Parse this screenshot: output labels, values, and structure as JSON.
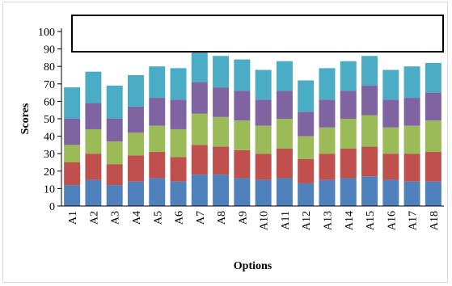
{
  "chart_data": {
    "type": "bar",
    "stacked": true,
    "title": "",
    "xlabel": "Options",
    "ylabel": "Scores",
    "ylim": [
      0,
      100
    ],
    "yticks": [
      0,
      10,
      20,
      30,
      40,
      50,
      60,
      70,
      80,
      90,
      100
    ],
    "grid": false,
    "categories": [
      "A1",
      "A2",
      "A3",
      "A4",
      "A5",
      "A6",
      "A7",
      "A8",
      "A9",
      "A10",
      "A11",
      "A12",
      "A13",
      "A14",
      "A15",
      "A16",
      "A17",
      "A18"
    ],
    "series": [
      {
        "color": "#4f81bd",
        "values": [
          12,
          15,
          12,
          14,
          16,
          14,
          18,
          18,
          16,
          15,
          16,
          13,
          15,
          16,
          17,
          15,
          14,
          14
        ]
      },
      {
        "color": "#c0504d",
        "values": [
          13,
          15,
          12,
          15,
          15,
          14,
          17,
          16,
          16,
          15,
          17,
          14,
          15,
          17,
          17,
          15,
          16,
          17
        ]
      },
      {
        "color": "#9bbb59",
        "values": [
          10,
          14,
          13,
          13,
          15,
          16,
          18,
          17,
          17,
          16,
          17,
          13,
          15,
          17,
          18,
          15,
          16,
          18
        ]
      },
      {
        "color": "#8064a2",
        "values": [
          15,
          15,
          13,
          15,
          16,
          17,
          18,
          17,
          17,
          15,
          16,
          14,
          16,
          16,
          17,
          16,
          16,
          16
        ]
      },
      {
        "color": "#4bacc6",
        "values": [
          18,
          18,
          19,
          18,
          18,
          18,
          19,
          18,
          18,
          17,
          17,
          18,
          18,
          17,
          17,
          17,
          18,
          17
        ]
      }
    ]
  }
}
